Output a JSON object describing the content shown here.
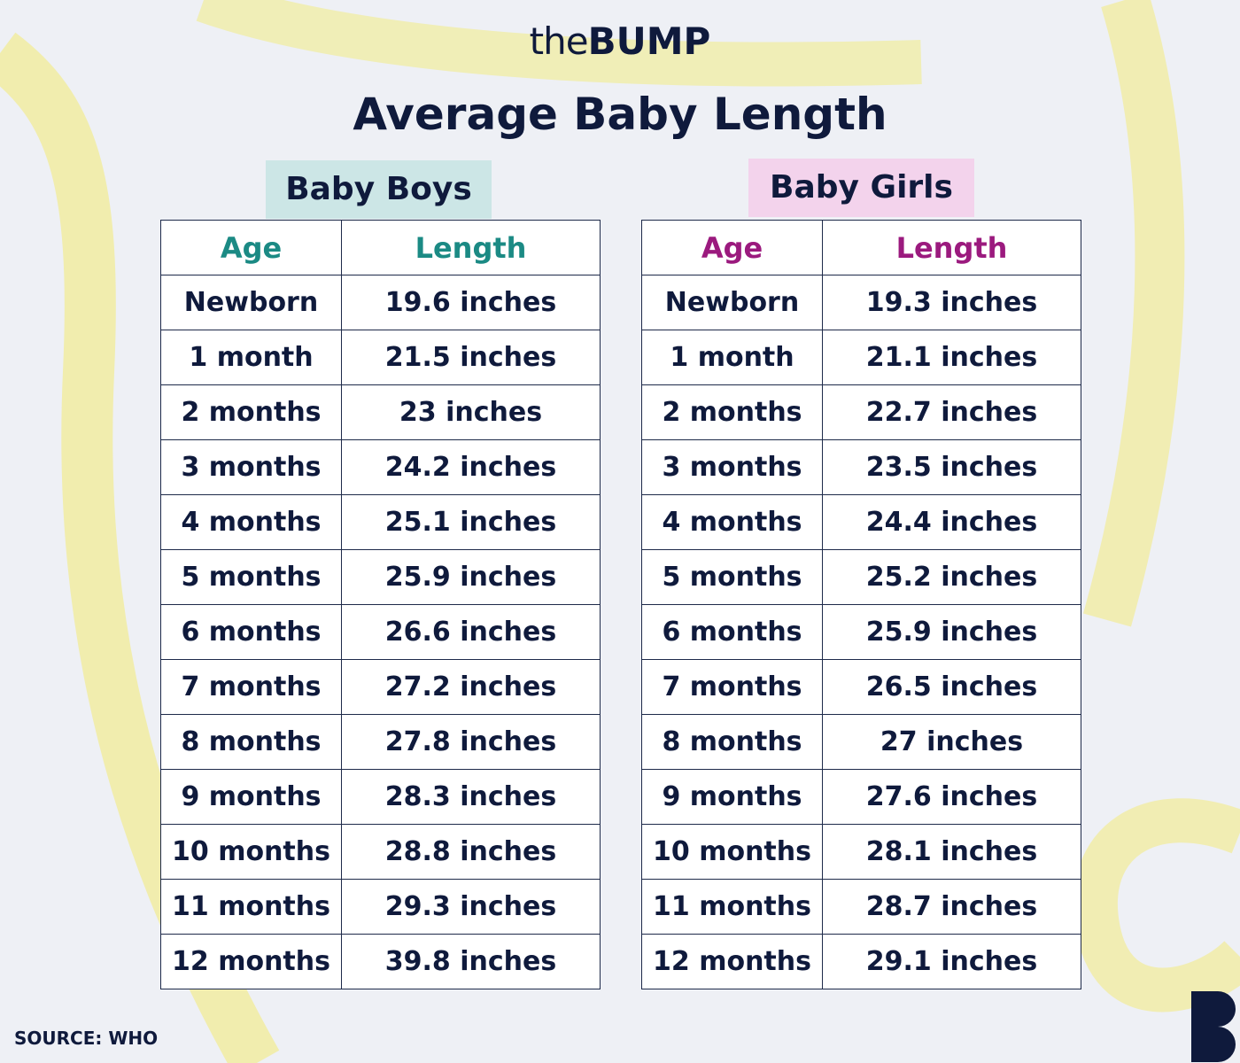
{
  "brand": {
    "prefix": "the",
    "name": "BUMP"
  },
  "title": "Average Baby Length",
  "tables": [
    {
      "label": "Baby Boys",
      "header": [
        "Age",
        "Length"
      ],
      "rows": [
        [
          "Newborn",
          "19.6 inches"
        ],
        [
          "1 month",
          "21.5 inches"
        ],
        [
          "2 months",
          "23 inches"
        ],
        [
          "3 months",
          "24.2 inches"
        ],
        [
          "4 months",
          "25.1 inches"
        ],
        [
          "5 months",
          "25.9 inches"
        ],
        [
          "6 months",
          "26.6 inches"
        ],
        [
          "7 months",
          "27.2 inches"
        ],
        [
          "8 months",
          "27.8 inches"
        ],
        [
          "9 months",
          "28.3 inches"
        ],
        [
          "10 months",
          "28.8 inches"
        ],
        [
          "11 months",
          "29.3 inches"
        ],
        [
          "12 months",
          "39.8 inches"
        ]
      ]
    },
    {
      "label": "Baby Girls",
      "header": [
        "Age",
        "Length"
      ],
      "rows": [
        [
          "Newborn",
          "19.3 inches"
        ],
        [
          "1 month",
          "21.1 inches"
        ],
        [
          "2 months",
          "22.7 inches"
        ],
        [
          "3 months",
          "23.5 inches"
        ],
        [
          "4 months",
          "24.4 inches"
        ],
        [
          "5 months",
          "25.2 inches"
        ],
        [
          "6 months",
          "25.9 inches"
        ],
        [
          "7 months",
          "26.5 inches"
        ],
        [
          "8 months",
          "27 inches"
        ],
        [
          "9 months",
          "27.6 inches"
        ],
        [
          "10 months",
          "28.1 inches"
        ],
        [
          "11 months",
          "28.7 inches"
        ],
        [
          "12 months",
          "29.1 inches"
        ]
      ]
    }
  ],
  "source": "SOURCE: WHO"
}
